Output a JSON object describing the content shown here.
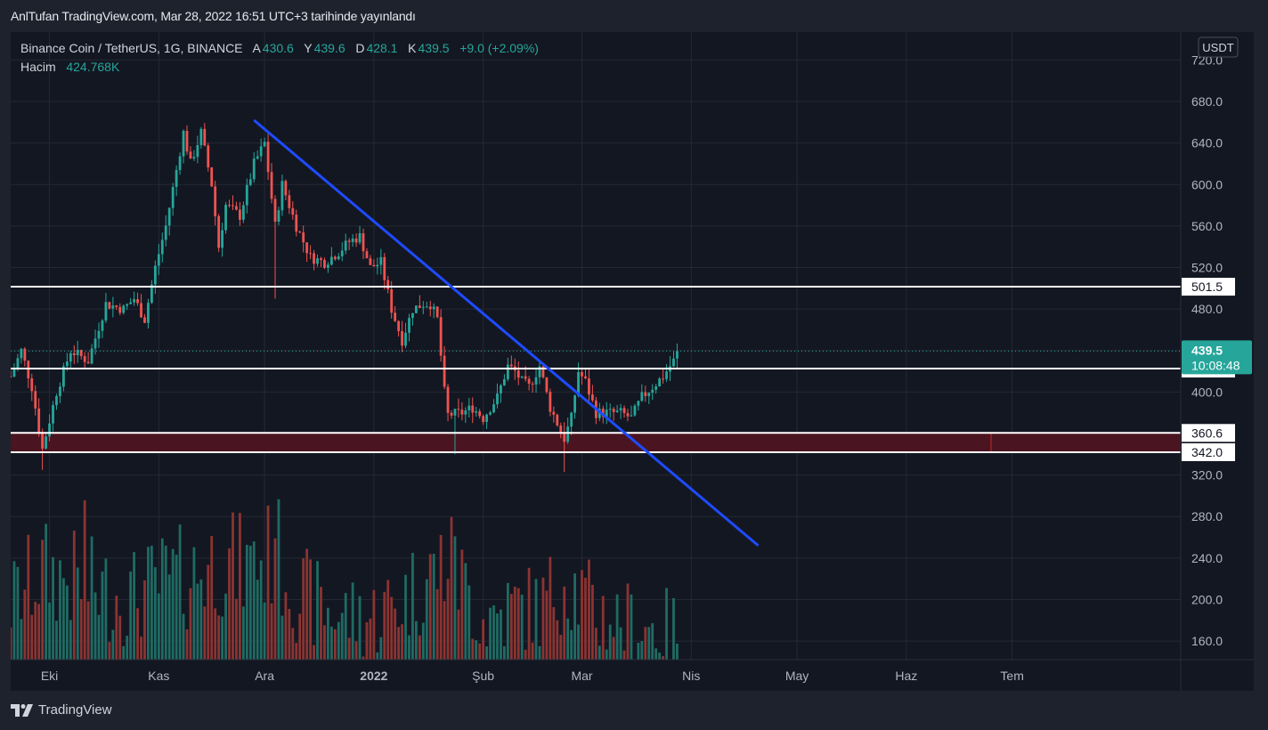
{
  "header": {
    "author": "AnlTufan",
    "published": "TradingView.com, Mar 28, 2022 16:51 UTC+3 tarihinde yayınlandı"
  },
  "legend": {
    "symbol": "Binance Coin / TetherUS, 1G, BINANCE",
    "open_label": "A",
    "open": "430.6",
    "high_label": "Y",
    "high": "439.6",
    "low_label": "D",
    "low": "428.1",
    "close_label": "K",
    "close": "439.5",
    "change": "+9.0 (+2.09%)",
    "volume_label": "Hacim",
    "volume": "424.768K"
  },
  "footer": {
    "brand": "TradingView"
  },
  "chart_data": {
    "type": "candlestick",
    "symbol": "BNB/USDT",
    "exchange": "BINANCE",
    "interval": "1G",
    "currency": "USDT",
    "ylim": [
      140,
      730
    ],
    "y_ticks": [
      "720.0",
      "680.0",
      "640.0",
      "600.0",
      "560.0",
      "520.0",
      "480.0",
      "440.0",
      "400.0",
      "360.0",
      "320.0",
      "280.0",
      "240.0",
      "200.0",
      "160.0"
    ],
    "x_ticks": [
      {
        "label": "Eki",
        "date": "2021-10-01"
      },
      {
        "label": "Kas",
        "date": "2021-11-01"
      },
      {
        "label": "Ara",
        "date": "2021-12-01"
      },
      {
        "label": "2022",
        "date": "2022-01-01",
        "bold": true
      },
      {
        "label": "Şub",
        "date": "2022-02-01"
      },
      {
        "label": "Mar",
        "date": "2022-03-01"
      },
      {
        "label": "Nis",
        "date": "2022-04-01"
      },
      {
        "label": "May",
        "date": "2022-05-01"
      },
      {
        "label": "Haz",
        "date": "2022-06-01"
      },
      {
        "label": "Tem",
        "date": "2022-07-01"
      }
    ],
    "price_path": [
      [
        "2021-09-20",
        415
      ],
      [
        "2021-09-23",
        440
      ],
      [
        "2021-09-26",
        405
      ],
      [
        "2021-09-29",
        345
      ],
      [
        "2021-10-03",
        400
      ],
      [
        "2021-10-07",
        440
      ],
      [
        "2021-10-12",
        430
      ],
      [
        "2021-10-17",
        485
      ],
      [
        "2021-10-22",
        480
      ],
      [
        "2021-10-25",
        490
      ],
      [
        "2021-10-28",
        470
      ],
      [
        "2021-10-31",
        520
      ],
      [
        "2021-11-03",
        560
      ],
      [
        "2021-11-08",
        650
      ],
      [
        "2021-11-10",
        620
      ],
      [
        "2021-11-13",
        650
      ],
      [
        "2021-11-16",
        600
      ],
      [
        "2021-11-18",
        540
      ],
      [
        "2021-11-20",
        580
      ],
      [
        "2021-11-24",
        570
      ],
      [
        "2021-11-28",
        620
      ],
      [
        "2021-12-01",
        640
      ],
      [
        "2021-12-04",
        560
      ],
      [
        "2021-12-06",
        600
      ],
      [
        "2021-12-08",
        580
      ],
      [
        "2021-12-10",
        560
      ],
      [
        "2021-12-14",
        530
      ],
      [
        "2021-12-18",
        525
      ],
      [
        "2021-12-22",
        535
      ],
      [
        "2021-12-25",
        545
      ],
      [
        "2021-12-28",
        550
      ],
      [
        "2021-12-31",
        520
      ],
      [
        "2022-01-03",
        525
      ],
      [
        "2022-01-06",
        480
      ],
      [
        "2022-01-09",
        450
      ],
      [
        "2022-01-12",
        480
      ],
      [
        "2022-01-15",
        485
      ],
      [
        "2022-01-17",
        485
      ],
      [
        "2022-01-19",
        470
      ],
      [
        "2022-01-21",
        400
      ],
      [
        "2022-01-22",
        378
      ],
      [
        "2022-01-26",
        380
      ],
      [
        "2022-01-29",
        385
      ],
      [
        "2022-02-01",
        375
      ],
      [
        "2022-02-05",
        395
      ],
      [
        "2022-02-08",
        425
      ],
      [
        "2022-02-10",
        420
      ],
      [
        "2022-02-12",
        410
      ],
      [
        "2022-02-14",
        405
      ],
      [
        "2022-02-17",
        425
      ],
      [
        "2022-02-20",
        385
      ],
      [
        "2022-02-24",
        355
      ],
      [
        "2022-02-26",
        375
      ],
      [
        "2022-02-28",
        420
      ],
      [
        "2022-03-02",
        410
      ],
      [
        "2022-03-05",
        380
      ],
      [
        "2022-03-08",
        380
      ],
      [
        "2022-03-12",
        380
      ],
      [
        "2022-03-15",
        375
      ],
      [
        "2022-03-18",
        395
      ],
      [
        "2022-03-21",
        405
      ],
      [
        "2022-03-24",
        415
      ],
      [
        "2022-03-27",
        430
      ],
      [
        "2022-03-28",
        439.5
      ]
    ],
    "volume_path": [
      [
        "2021-09-20",
        190000
      ],
      [
        "2021-09-29",
        220000
      ],
      [
        "2021-10-08",
        210000
      ],
      [
        "2021-10-16",
        200000
      ],
      [
        "2021-10-24",
        195000
      ],
      [
        "2021-11-03",
        210000
      ],
      [
        "2021-11-10",
        215000
      ],
      [
        "2021-11-18",
        230000
      ],
      [
        "2021-11-28",
        220000
      ],
      [
        "2021-12-04",
        240000
      ],
      [
        "2021-12-10",
        200000
      ],
      [
        "2021-12-20",
        180000
      ],
      [
        "2021-12-31",
        175000
      ],
      [
        "2022-01-10",
        195000
      ],
      [
        "2022-01-22",
        230000
      ],
      [
        "2022-02-01",
        175000
      ],
      [
        "2022-02-10",
        185000
      ],
      [
        "2022-02-18",
        185000
      ],
      [
        "2022-02-24",
        215000
      ],
      [
        "2022-03-05",
        180000
      ],
      [
        "2022-03-15",
        170000
      ],
      [
        "2022-03-28",
        163000
      ]
    ],
    "volume_spikes": [
      {
        "date": "2021-10-11",
        "value": 295000
      },
      {
        "date": "2022-01-24",
        "value": 260000
      },
      {
        "date": "2021-12-04",
        "value": 258000
      },
      {
        "date": "2021-11-28",
        "value": 255000
      }
    ],
    "lows": [
      {
        "date": "2021-09-29",
        "value": 325
      },
      {
        "date": "2021-12-04",
        "value": 490
      },
      {
        "date": "2022-01-24",
        "value": 340
      },
      {
        "date": "2022-02-24",
        "value": 323
      }
    ],
    "horizontal_levels": [
      {
        "value": 501.5,
        "label": "501.5",
        "color": "#ffffff"
      },
      {
        "value": 422.6,
        "label": "422.6",
        "color": "#ffffff"
      },
      {
        "value": 360.6,
        "label": "360.6",
        "color": "#ffffff"
      },
      {
        "value": 342.0,
        "label": "342.0",
        "color": "#ffffff"
      }
    ],
    "zone": {
      "from": 342.0,
      "to": 360.6,
      "fill": "#4a1421"
    },
    "trendline": {
      "from": {
        "date": "2021-11-28",
        "value": 662
      },
      "to": {
        "date": "2022-04-20",
        "value": 252
      },
      "color": "#1e4bff"
    },
    "last_price": {
      "value": 439.5,
      "label": "439.5",
      "countdown": "10:08:48",
      "color": "#26a69a"
    },
    "colors": {
      "up": "#26a69a",
      "down": "#ef5350",
      "vol_up": "#1f6b63",
      "vol_down": "#8b3432",
      "grid": "#252933",
      "background": "#131722"
    }
  }
}
